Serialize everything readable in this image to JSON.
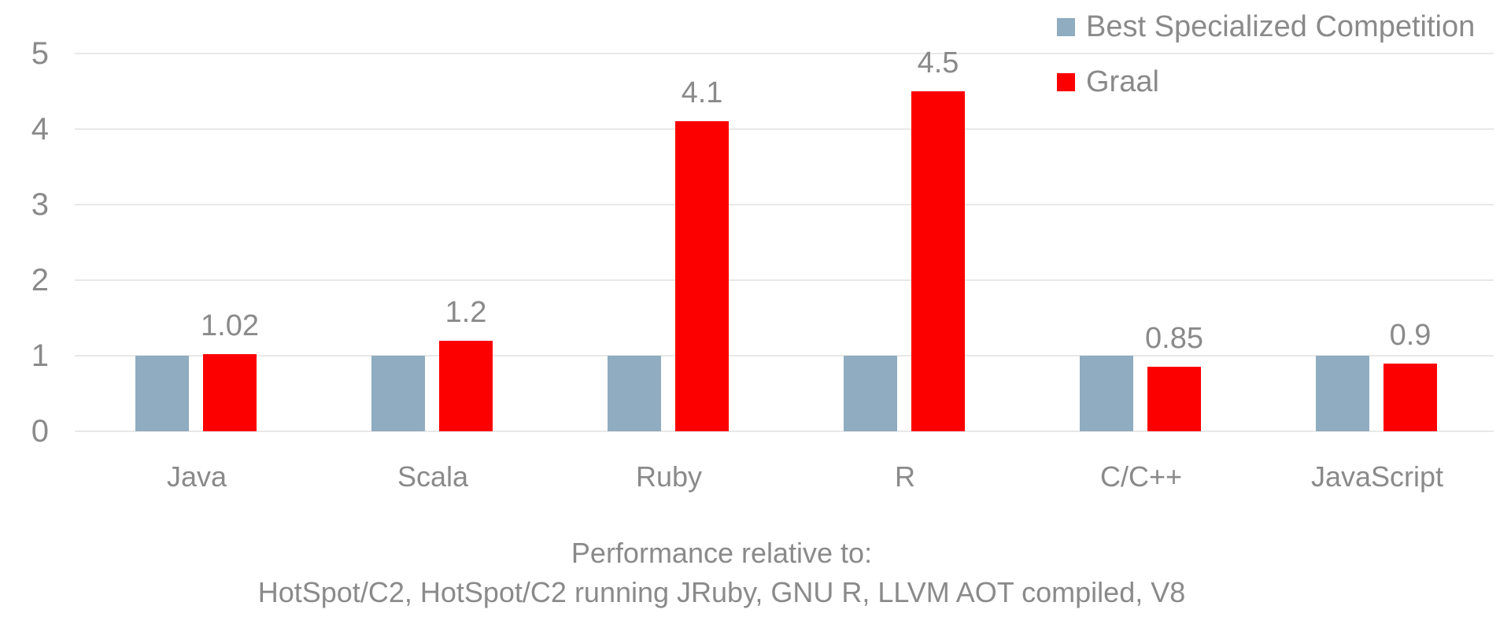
{
  "chart_data": {
    "type": "bar",
    "categories": [
      "Java",
      "Scala",
      "Ruby",
      "R",
      "C/C++",
      "JavaScript"
    ],
    "series": [
      {
        "name": "Best Specialized Competition",
        "color": "#8facc0",
        "values": [
          1,
          1,
          1,
          1,
          1,
          1
        ]
      },
      {
        "name": "Graal",
        "color": "#fc0000",
        "values": [
          1.02,
          1.2,
          4.1,
          4.5,
          0.85,
          0.9
        ],
        "data_labels": [
          "1.02",
          "1.2",
          "4.1",
          "4.5",
          "0.85",
          "0.9"
        ]
      }
    ],
    "yticks": [
      0,
      1,
      2,
      3,
      4,
      5
    ],
    "ylim": [
      0,
      5
    ],
    "grid": "horizontal",
    "legend_position": "top-right",
    "caption": {
      "line1": "Performance relative to:",
      "line2": "HotSpot/C2, HotSpot/C2 running JRuby, GNU R, LLVM AOT compiled, V8"
    }
  },
  "colors": {
    "background": "#ffffff",
    "gridline": "#e8e8e8",
    "text": "#8a8a8a",
    "competition_blue": "#8facc0",
    "graal_red": "#fc0000"
  }
}
